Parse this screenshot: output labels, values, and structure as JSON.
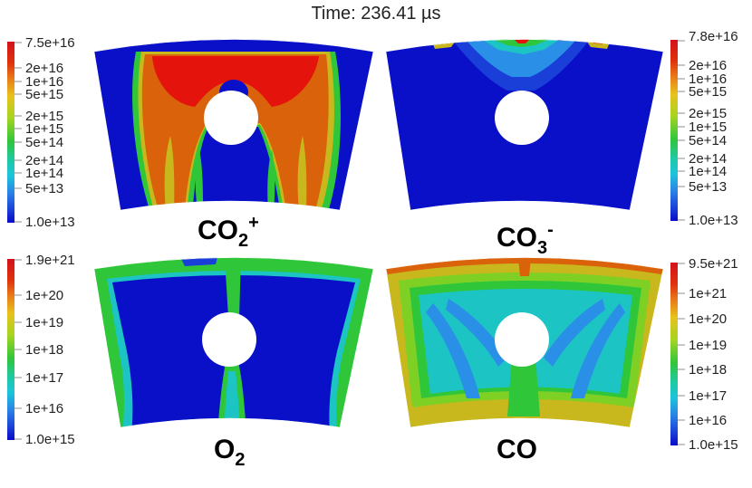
{
  "title": "Time: 236.41 µs",
  "panels": [
    {
      "name": "co2-plus",
      "species": {
        "base": "CO",
        "sub": "2",
        "sup": "+"
      },
      "colorbar": {
        "labels": [
          "7.5e+16",
          "2e+16",
          "1e+16",
          "5e+15",
          "2e+15",
          "1e+15",
          "5e+14",
          "2e+14",
          "1e+14",
          "5e+13",
          "1.0e+13"
        ]
      }
    },
    {
      "name": "co3-minus",
      "species": {
        "base": "CO",
        "sub": "3",
        "sup": "-"
      },
      "colorbar": {
        "labels": [
          "7.8e+16",
          "2e+16",
          "1e+16",
          "5e+15",
          "2e+15",
          "1e+15",
          "5e+14",
          "2e+14",
          "1e+14",
          "5e+13",
          "1.0e+13"
        ]
      }
    },
    {
      "name": "o2",
      "species": {
        "base": "O",
        "sub": "2",
        "sup": ""
      },
      "colorbar": {
        "labels": [
          "1.9e+21",
          "1e+20",
          "1e+19",
          "1e+18",
          "1e+17",
          "1e+16",
          "1.0e+15"
        ]
      }
    },
    {
      "name": "co",
      "species": {
        "base": "CO",
        "sub": "",
        "sup": ""
      },
      "colorbar": {
        "labels": [
          "9.5e+21",
          "1e+21",
          "1e+20",
          "1e+19",
          "1e+18",
          "1e+17",
          "1e+16",
          "1.0e+15"
        ]
      }
    }
  ],
  "colors": {
    "red": "#e4140c",
    "orange": "#d9620a",
    "yellow": "#c8b81e",
    "lime": "#7fd024",
    "green": "#2fc63a",
    "cyan": "#1cc4c4",
    "sky": "#2a8fe6",
    "blue": "#1a3fd8",
    "navy": "#0a10c8"
  }
}
